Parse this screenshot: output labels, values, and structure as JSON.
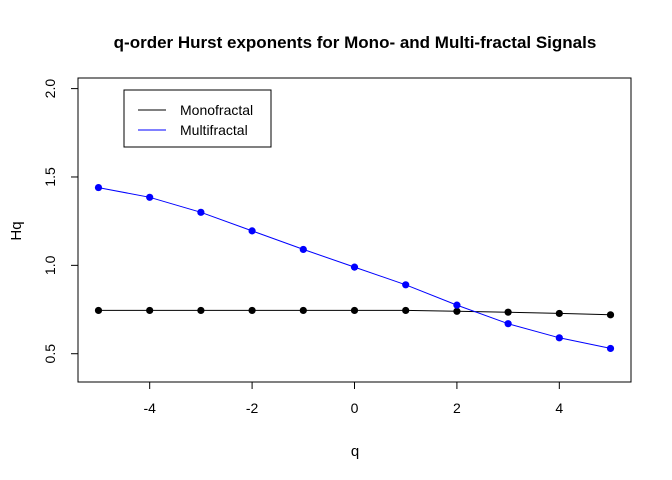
{
  "chart_data": {
    "type": "line",
    "title": "q-order Hurst exponents for Mono- and Multi-fractal Signals",
    "xlabel": "q",
    "ylabel": "Hq",
    "xlim": [
      -5.4,
      5.4
    ],
    "ylim": [
      0.34,
      2.06
    ],
    "x_ticks": [
      -4,
      -2,
      0,
      2,
      4
    ],
    "y_ticks": [
      0.5,
      1.0,
      1.5,
      2.0
    ],
    "x_tick_labels": [
      "-4",
      "-2",
      "0",
      "2",
      "4"
    ],
    "y_tick_labels": [
      "0.5",
      "1.0",
      "1.5",
      "2.0"
    ],
    "grid": false,
    "legend_position": "top-left",
    "x": [
      -5,
      -4,
      -3,
      -2,
      -1,
      0,
      1,
      2,
      3,
      4,
      5
    ],
    "series": [
      {
        "name": "Monofractal",
        "color": "#000000",
        "line_style": "solid",
        "values": [
          0.745,
          0.745,
          0.745,
          0.745,
          0.745,
          0.745,
          0.745,
          0.74,
          0.735,
          0.728,
          0.72
        ]
      },
      {
        "name": "Multifractal",
        "color": "#0000ff",
        "line_style": "solid",
        "values": [
          1.44,
          1.385,
          1.3,
          1.195,
          1.09,
          0.99,
          0.89,
          0.775,
          0.67,
          0.59,
          0.53
        ]
      }
    ]
  }
}
